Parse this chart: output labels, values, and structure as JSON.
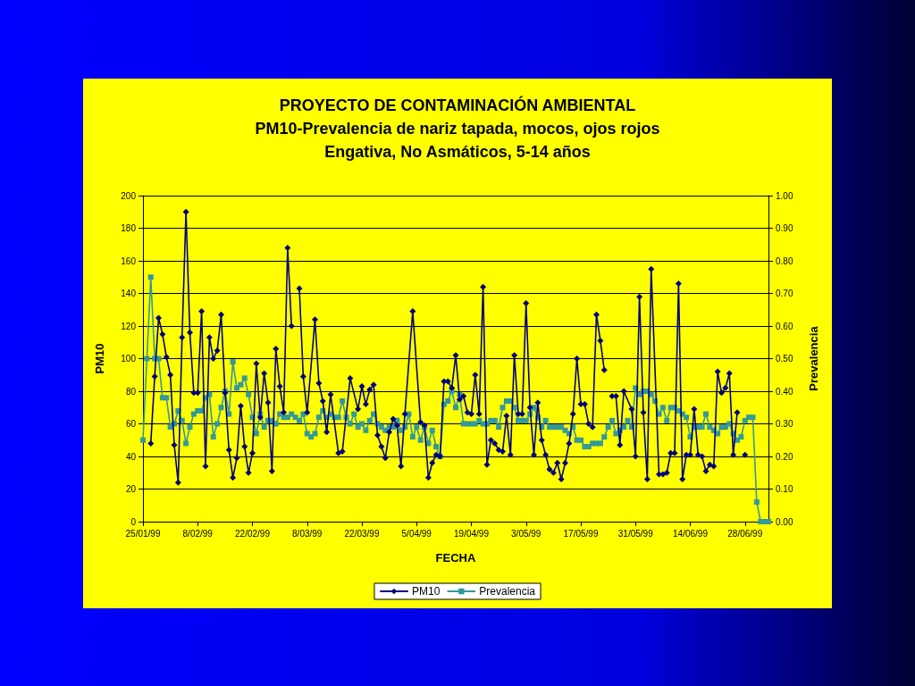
{
  "chart_data": {
    "type": "line",
    "title": "PROYECTO DE CONTAMINACIÓN AMBIENTAL",
    "subtitle": "PM10-Prevalencia de nariz tapada, mocos, ojos rojos\nEngativa, No Asmáticos, 5-14 años",
    "xlabel": "FECHA",
    "ylabel": "PM10",
    "y2label": "Prevalencia",
    "xlim": [
      "1999-01-25",
      "1999-07-04"
    ],
    "xticks": [
      {
        "value": "1999-01-25",
        "label": "25/01/99"
      },
      {
        "value": "1999-02-08",
        "label": "8/02/99"
      },
      {
        "value": "1999-02-22",
        "label": "22/02/99"
      },
      {
        "value": "1999-03-08",
        "label": "8/03/99"
      },
      {
        "value": "1999-03-22",
        "label": "22/03/99"
      },
      {
        "value": "1999-04-05",
        "label": "5/04/99"
      },
      {
        "value": "1999-04-19",
        "label": "19/04/99"
      },
      {
        "value": "1999-05-03",
        "label": "3/05/99"
      },
      {
        "value": "1999-05-17",
        "label": "17/05/99"
      },
      {
        "value": "1999-05-31",
        "label": "31/05/99"
      },
      {
        "value": "1999-06-14",
        "label": "14/06/99"
      },
      {
        "value": "1999-06-28",
        "label": "28/06/99"
      }
    ],
    "ylim": [
      0,
      200
    ],
    "yticks": [
      0,
      20,
      40,
      60,
      80,
      100,
      120,
      140,
      160,
      180,
      200
    ],
    "y2lim": [
      0,
      1
    ],
    "y2ticks": [
      {
        "value": 0,
        "label": "0.00"
      },
      {
        "value": 0.1,
        "label": "0.10"
      },
      {
        "value": 0.2,
        "label": "0.20"
      },
      {
        "value": 0.3,
        "label": "0.30"
      },
      {
        "value": 0.4,
        "label": "0.40"
      },
      {
        "value": 0.5,
        "label": "0.50"
      },
      {
        "value": 0.6,
        "label": "0.60"
      },
      {
        "value": 0.7,
        "label": "0.70"
      },
      {
        "value": 0.8,
        "label": "0.80"
      },
      {
        "value": 0.9,
        "label": "0.90"
      },
      {
        "value": 1,
        "label": "1.00"
      }
    ],
    "grid": "y",
    "legend": "bottom",
    "line_style": "solid",
    "series": [
      {
        "name": "PM10",
        "color": "#000080",
        "marker": "diamond",
        "x": [
          "1999-01-27",
          "1999-01-28",
          "1999-01-29",
          "1999-01-30",
          "1999-01-31",
          "1999-02-01",
          "1999-02-02",
          "1999-02-03",
          "1999-02-04",
          "1999-02-05",
          "1999-02-06",
          "1999-02-07",
          "1999-02-08",
          "1999-02-09",
          "1999-02-10",
          "1999-02-11",
          "1999-02-12",
          "1999-02-13",
          "1999-02-14",
          "1999-02-15",
          "1999-02-16",
          "1999-02-17",
          "1999-02-18",
          "1999-02-19",
          "1999-02-20",
          "1999-02-21",
          "1999-02-22",
          "1999-02-23",
          "1999-02-24",
          "1999-02-25",
          "1999-02-26",
          "1999-02-27",
          "1999-02-28",
          "1999-03-01",
          "1999-03-02",
          "1999-03-03",
          "1999-03-04",
          "1999-03-05",
          "1999-03-06",
          "1999-03-07",
          "1999-03-08",
          "1999-03-10",
          "1999-03-11",
          "1999-03-12",
          "1999-03-13",
          "1999-03-14",
          "1999-03-16",
          "1999-03-17",
          "1999-03-19",
          "1999-03-21",
          "1999-03-22",
          "1999-03-23",
          "1999-03-24",
          "1999-03-25",
          "1999-03-26",
          "1999-03-27",
          "1999-03-28",
          "1999-03-29",
          "1999-03-30",
          "1999-03-31",
          "1999-04-01",
          "1999-04-02",
          "1999-04-04",
          "1999-04-06",
          "1999-04-07",
          "1999-04-08",
          "1999-04-09",
          "1999-04-10",
          "1999-04-11",
          "1999-04-12",
          "1999-04-13",
          "1999-04-14",
          "1999-04-15",
          "1999-04-16",
          "1999-04-17",
          "1999-04-18",
          "1999-04-19",
          "1999-04-20",
          "1999-04-21",
          "1999-04-22",
          "1999-04-23",
          "1999-04-24",
          "1999-04-25",
          "1999-04-26",
          "1999-04-27",
          "1999-04-28",
          "1999-04-29",
          "1999-04-30",
          "1999-05-01",
          "1999-05-02",
          "1999-05-03",
          "1999-05-04",
          "1999-05-05",
          "1999-05-06",
          "1999-05-07",
          "1999-05-08",
          "1999-05-09",
          "1999-05-10",
          "1999-05-11",
          "1999-05-12",
          "1999-05-13",
          "1999-05-14",
          "1999-05-15",
          "1999-05-16",
          "1999-05-17",
          "1999-05-18",
          "1999-05-19",
          "1999-05-20",
          "1999-05-21",
          "1999-05-22",
          "1999-05-23",
          "1999-05-24",
          "1999-05-25",
          "1999-05-26",
          "1999-05-27",
          "1999-05-28",
          "1999-05-30",
          "1999-05-31",
          "1999-06-01",
          "1999-06-02",
          "1999-06-03",
          "1999-06-04",
          "1999-06-06",
          "1999-06-07",
          "1999-06-08",
          "1999-06-09",
          "1999-06-10",
          "1999-06-11",
          "1999-06-12",
          "1999-06-13",
          "1999-06-14",
          "1999-06-15",
          "1999-06-16",
          "1999-06-17",
          "1999-06-18",
          "1999-06-19",
          "1999-06-20",
          "1999-06-21",
          "1999-06-22",
          "1999-06-23",
          "1999-06-24",
          "1999-06-25",
          "1999-06-26",
          "1999-06-27",
          "1999-06-28"
        ],
        "values": [
          48,
          89,
          125,
          115,
          101,
          90,
          47,
          24,
          113,
          190,
          116,
          79,
          79,
          129,
          34,
          113,
          100,
          105,
          127,
          79,
          44,
          27,
          39,
          71,
          46,
          30,
          42,
          97,
          64,
          91,
          73,
          31,
          106,
          83,
          67,
          168,
          120,
          null,
          143,
          89,
          67,
          124,
          85,
          74,
          55,
          78,
          42,
          43,
          88,
          69,
          83,
          72,
          81,
          84,
          53,
          46,
          39,
          55,
          63,
          59,
          34,
          66,
          129,
          61,
          59,
          27,
          36,
          41,
          40,
          86,
          86,
          82,
          102,
          75,
          77,
          67,
          66,
          90,
          66,
          144,
          35,
          50,
          48,
          44,
          43,
          65,
          41,
          102,
          66,
          66,
          134,
          70,
          41,
          73,
          50,
          41,
          32,
          30,
          36,
          26,
          36,
          48,
          66,
          100,
          72,
          72,
          60,
          58,
          127,
          111,
          93,
          null,
          77,
          77,
          47,
          80,
          69,
          40,
          138,
          67,
          26,
          155,
          29,
          29,
          30,
          42,
          42,
          146,
          26,
          41,
          41,
          69,
          41,
          40,
          31,
          35,
          34,
          92,
          79,
          82,
          91,
          41,
          67,
          null,
          41
        ]
      },
      {
        "name": "Prevalencia",
        "color": "#339999",
        "marker": "square",
        "axis": "y2",
        "x": [
          "1999-01-25",
          "1999-01-26",
          "1999-01-27",
          "1999-01-28",
          "1999-01-29",
          "1999-01-30",
          "1999-01-31",
          "1999-02-01",
          "1999-02-02",
          "1999-02-03",
          "1999-02-04",
          "1999-02-05",
          "1999-02-06",
          "1999-02-07",
          "1999-02-08",
          "1999-02-09",
          "1999-02-10",
          "1999-02-11",
          "1999-02-12",
          "1999-02-13",
          "1999-02-14",
          "1999-02-15",
          "1999-02-16",
          "1999-02-17",
          "1999-02-18",
          "1999-02-19",
          "1999-02-20",
          "1999-02-21",
          "1999-02-22",
          "1999-02-23",
          "1999-02-24",
          "1999-02-25",
          "1999-02-26",
          "1999-02-27",
          "1999-02-28",
          "1999-03-01",
          "1999-03-02",
          "1999-03-03",
          "1999-03-04",
          "1999-03-05",
          "1999-03-06",
          "1999-03-07",
          "1999-03-08",
          "1999-03-09",
          "1999-03-10",
          "1999-03-11",
          "1999-03-12",
          "1999-03-13",
          "1999-03-14",
          "1999-03-15",
          "1999-03-16",
          "1999-03-17",
          "1999-03-18",
          "1999-03-19",
          "1999-03-20",
          "1999-03-21",
          "1999-03-22",
          "1999-03-23",
          "1999-03-24",
          "1999-03-25",
          "1999-03-26",
          "1999-03-27",
          "1999-03-28",
          "1999-03-29",
          "1999-03-30",
          "1999-03-31",
          "1999-04-01",
          "1999-04-02",
          "1999-04-03",
          "1999-04-04",
          "1999-04-05",
          "1999-04-06",
          "1999-04-07",
          "1999-04-08",
          "1999-04-09",
          "1999-04-10",
          "1999-04-11",
          "1999-04-12",
          "1999-04-13",
          "1999-04-14",
          "1999-04-15",
          "1999-04-16",
          "1999-04-17",
          "1999-04-18",
          "1999-04-19",
          "1999-04-20",
          "1999-04-21",
          "1999-04-22",
          "1999-04-23",
          "1999-04-24",
          "1999-04-25",
          "1999-04-26",
          "1999-04-27",
          "1999-04-28",
          "1999-04-29",
          "1999-04-30",
          "1999-05-01",
          "1999-05-02",
          "1999-05-03",
          "1999-05-04",
          "1999-05-05",
          "1999-05-06",
          "1999-05-07",
          "1999-05-08",
          "1999-05-09",
          "1999-05-10",
          "1999-05-11",
          "1999-05-12",
          "1999-05-13",
          "1999-05-14",
          "1999-05-15",
          "1999-05-16",
          "1999-05-17",
          "1999-05-18",
          "1999-05-19",
          "1999-05-20",
          "1999-05-21",
          "1999-05-22",
          "1999-05-23",
          "1999-05-24",
          "1999-05-25",
          "1999-05-26",
          "1999-05-27",
          "1999-05-28",
          "1999-05-29",
          "1999-05-30",
          "1999-05-31",
          "1999-06-01",
          "1999-06-02",
          "1999-06-03",
          "1999-06-04",
          "1999-06-05",
          "1999-06-06",
          "1999-06-07",
          "1999-06-08",
          "1999-06-09",
          "1999-06-10",
          "1999-06-11",
          "1999-06-12",
          "1999-06-13",
          "1999-06-14",
          "1999-06-15",
          "1999-06-16",
          "1999-06-17",
          "1999-06-18",
          "1999-06-19",
          "1999-06-20",
          "1999-06-21",
          "1999-06-22",
          "1999-06-23",
          "1999-06-24",
          "1999-06-25",
          "1999-06-26",
          "1999-06-27",
          "1999-06-28",
          "1999-06-29",
          "1999-06-30",
          "1999-07-01",
          "1999-07-02",
          "1999-07-03",
          "1999-07-04"
        ],
        "values": [
          0.25,
          0.5,
          0.75,
          0.5,
          0.5,
          0.38,
          0.38,
          0.29,
          0.3,
          0.34,
          0.31,
          0.24,
          0.29,
          0.33,
          0.34,
          0.34,
          0.38,
          0.39,
          0.26,
          0.3,
          0.35,
          0.4,
          0.33,
          0.49,
          0.41,
          0.42,
          0.44,
          0.39,
          0.32,
          0.27,
          0.33,
          0.29,
          0.31,
          0.31,
          0.3,
          0.33,
          0.32,
          0.32,
          0.33,
          0.32,
          0.31,
          0.33,
          0.27,
          0.26,
          0.27,
          0.32,
          0.34,
          0.32,
          0.33,
          0.32,
          0.32,
          0.37,
          0.32,
          0.3,
          0.33,
          0.29,
          0.3,
          0.28,
          0.31,
          0.33,
          0.3,
          0.29,
          0.28,
          0.29,
          0.29,
          0.31,
          0.28,
          0.29,
          0.33,
          0.26,
          0.29,
          0.25,
          0.29,
          0.24,
          0.28,
          0.23,
          0.2,
          0.36,
          0.37,
          0.4,
          0.35,
          0.39,
          0.3,
          0.3,
          0.3,
          0.3,
          0.31,
          0.3,
          0.3,
          0.31,
          0.31,
          0.29,
          0.35,
          0.37,
          0.37,
          0.35,
          0.31,
          0.31,
          0.31,
          0.33,
          0.35,
          0.32,
          0.29,
          0.31,
          0.29,
          0.29,
          0.29,
          0.29,
          0.28,
          0.27,
          0.29,
          0.25,
          0.25,
          0.23,
          0.23,
          0.24,
          0.24,
          0.24,
          0.26,
          0.29,
          0.31,
          0.27,
          0.28,
          0.29,
          0.31,
          0.29,
          0.41,
          0.39,
          0.4,
          0.4,
          0.39,
          0.37,
          0.33,
          0.35,
          0.31,
          0.35,
          0.35,
          0.34,
          0.33,
          0.32,
          0.26,
          0.29,
          0.29,
          0.29,
          0.33,
          0.29,
          0.28,
          0.27,
          0.29,
          0.29,
          0.3,
          0.27,
          0.25,
          0.26,
          0.31,
          0.32,
          0.32,
          0.06,
          0,
          0,
          0
        ]
      }
    ]
  }
}
